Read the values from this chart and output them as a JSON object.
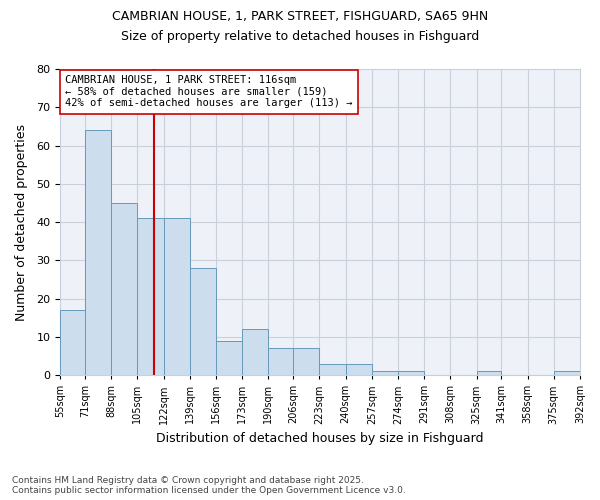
{
  "title_line1": "CAMBRIAN HOUSE, 1, PARK STREET, FISHGUARD, SA65 9HN",
  "title_line2": "Size of property relative to detached houses in Fishguard",
  "xlabel": "Distribution of detached houses by size in Fishguard",
  "ylabel": "Number of detached properties",
  "bar_color": "#ccdded",
  "bar_edge_color": "#6699bb",
  "bins": [
    55,
    71,
    88,
    105,
    122,
    139,
    156,
    173,
    190,
    206,
    223,
    240,
    257,
    274,
    291,
    308,
    325,
    341,
    358,
    375,
    392
  ],
  "counts": [
    17,
    64,
    45,
    41,
    41,
    28,
    9,
    12,
    7,
    7,
    3,
    3,
    1,
    1,
    0,
    0,
    1,
    0,
    0,
    1
  ],
  "property_size": 116,
  "red_line_color": "#cc0000",
  "annotation_text": "CAMBRIAN HOUSE, 1 PARK STREET: 116sqm\n← 58% of detached houses are smaller (159)\n42% of semi-detached houses are larger (113) →",
  "annotation_box_color": "#ffffff",
  "annotation_box_edge": "#cc0000",
  "tick_labels": [
    "55sqm",
    "71sqm",
    "88sqm",
    "105sqm",
    "122sqm",
    "139sqm",
    "156sqm",
    "173sqm",
    "190sqm",
    "206sqm",
    "223sqm",
    "240sqm",
    "257sqm",
    "274sqm",
    "291sqm",
    "308sqm",
    "325sqm",
    "341sqm",
    "358sqm",
    "375sqm",
    "392sqm"
  ],
  "ylim": [
    0,
    80
  ],
  "yticks": [
    0,
    10,
    20,
    30,
    40,
    50,
    60,
    70,
    80
  ],
  "footer_text": "Contains HM Land Registry data © Crown copyright and database right 2025.\nContains public sector information licensed under the Open Government Licence v3.0.",
  "bg_color": "#ffffff",
  "plot_bg_color": "#eef2f8",
  "grid_color": "#c8d0dc"
}
